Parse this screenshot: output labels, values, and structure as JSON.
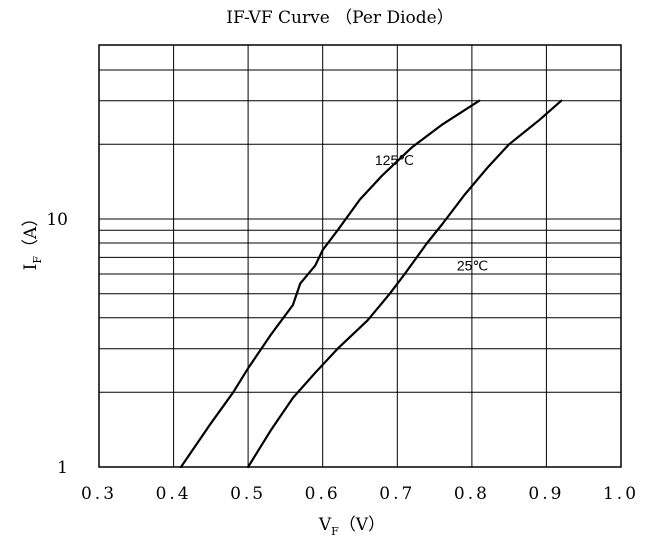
{
  "chart_data": {
    "type": "line",
    "title": "IF-VF Curve （Per Diode）",
    "xlabel": {
      "main": "V",
      "sub": "F",
      "unit": "（V）"
    },
    "ylabel": {
      "main": "I",
      "sub": "F",
      "unit": "（A）"
    },
    "x_scale": "linear",
    "y_scale": "log",
    "xlim": [
      0.3,
      1.0
    ],
    "ylim": [
      1,
      30
    ],
    "x_ticks": [
      0.3,
      0.4,
      0.5,
      0.6,
      0.7,
      0.8,
      0.9,
      1.0
    ],
    "x_tick_labels": [
      "0.3",
      "0.4",
      "0.5",
      "0.6",
      "0.7",
      "0.8",
      "0.9",
      "1.0"
    ],
    "y_ticks": [
      1,
      10
    ],
    "y_tick_labels": [
      "1",
      "10"
    ],
    "y_gridlines": [
      2,
      3,
      4,
      5,
      6,
      7,
      8,
      9,
      10,
      20,
      30
    ],
    "grid": true,
    "series": [
      {
        "name": "125℃",
        "x": [
          0.41,
          0.45,
          0.48,
          0.5,
          0.53,
          0.56,
          0.57,
          0.59,
          0.6,
          0.62,
          0.65,
          0.68,
          0.72,
          0.76,
          0.81
        ],
        "y": [
          1.0,
          1.5,
          2.0,
          2.5,
          3.4,
          4.5,
          5.5,
          6.5,
          7.5,
          9.0,
          12.0,
          15.0,
          19.5,
          24.0,
          30.0
        ]
      },
      {
        "name": "25℃",
        "x": [
          0.5,
          0.53,
          0.56,
          0.59,
          0.62,
          0.66,
          0.69,
          0.71,
          0.74,
          0.76,
          0.79,
          0.82,
          0.85,
          0.89,
          0.92
        ],
        "y": [
          1.0,
          1.4,
          1.9,
          2.4,
          3.0,
          3.9,
          5.0,
          6.0,
          8.0,
          9.5,
          12.5,
          16.0,
          20.0,
          25.0,
          30.0
        ]
      }
    ],
    "annotations": [
      {
        "text": "125℃",
        "x": 0.67,
        "y": 16.5
      },
      {
        "text": "25℃",
        "x": 0.78,
        "y": 6.2
      }
    ],
    "colors": {
      "line": "#000000",
      "grid": "#000000",
      "background": "#ffffff"
    }
  }
}
